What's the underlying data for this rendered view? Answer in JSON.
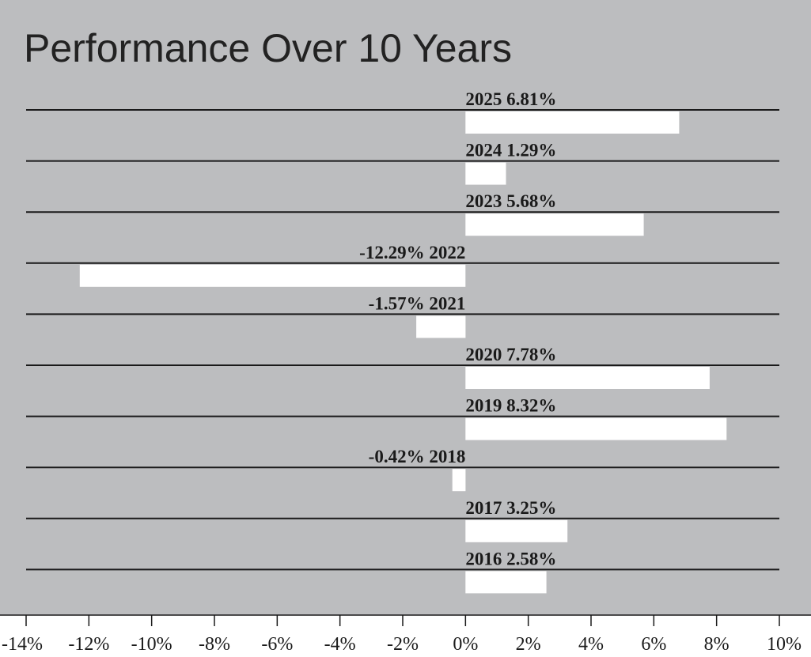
{
  "colors": {
    "panel_background": "#bcbdbf",
    "bar_fill": "#ffffff",
    "rule_line": "#1a1a1a",
    "text": "#1a1a1a"
  },
  "chart_data": {
    "type": "bar",
    "orientation": "horizontal",
    "title": "Performance Over 10 Years",
    "xlabel": "",
    "ylabel": "",
    "xlim": [
      -14,
      10
    ],
    "x_ticks": [
      -14,
      -12,
      -10,
      -8,
      -6,
      -4,
      -2,
      0,
      2,
      4,
      6,
      8,
      10
    ],
    "x_tick_labels": [
      "-14%",
      "-12%",
      "-10%",
      "-8%",
      "-6%",
      "-4%",
      "-2%",
      "0%",
      "2%",
      "4%",
      "6%",
      "8%",
      "10%"
    ],
    "grid": false,
    "categories": [
      "2025",
      "2024",
      "2023",
      "2022",
      "2021",
      "2020",
      "2019",
      "2018",
      "2017",
      "2016"
    ],
    "values": [
      6.81,
      1.29,
      5.68,
      -12.29,
      -1.57,
      7.78,
      8.32,
      -0.42,
      3.25,
      2.58
    ],
    "data_labels": [
      "2025 6.81%",
      "2024 1.29%",
      "2023 5.68%",
      "-12.29% 2022",
      "-1.57% 2021",
      "2020 7.78%",
      "2019 8.32%",
      "-0.42% 2018",
      "2017 3.25%",
      "2016 2.58%"
    ]
  }
}
